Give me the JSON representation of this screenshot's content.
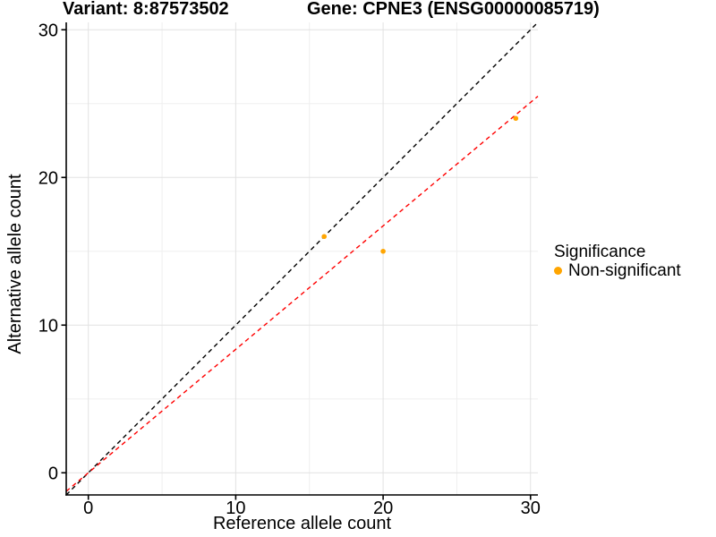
{
  "titles": {
    "variant": "Variant: 8:87573502",
    "gene": "Gene: CPNE3 (ENSG00000085719)"
  },
  "chart_data": {
    "type": "scatter",
    "xlabel": "Reference allele count",
    "ylabel": "Alternative allele count",
    "xlim": [
      -1.5,
      30.5
    ],
    "ylim": [
      -1.5,
      30.5
    ],
    "xticks": [
      0,
      10,
      20,
      30
    ],
    "yticks": [
      0,
      10,
      20,
      30
    ],
    "minor_xticks": [
      5,
      15,
      25
    ],
    "minor_yticks": [
      5,
      15,
      25
    ],
    "grid": "major+minor",
    "points": [
      {
        "x": 16,
        "y": 16,
        "series": "Non-significant"
      },
      {
        "x": 20,
        "y": 15,
        "series": "Non-significant"
      },
      {
        "x": 29,
        "y": 24,
        "series": "Non-significant"
      }
    ],
    "point_color": "#FFA500",
    "point_radius": 2.8,
    "lines": [
      {
        "name": "identity-line",
        "slope": 1,
        "intercept": 0,
        "color": "#000000",
        "dash": "dashed"
      },
      {
        "name": "regression-line",
        "slope": 0.836,
        "intercept": 0,
        "color": "#FF0000",
        "dash": "dashed"
      }
    ],
    "legend": {
      "title": "Significance",
      "position": "right",
      "items": [
        {
          "label": "Non-significant",
          "color": "#FFA500"
        }
      ]
    },
    "colors": {
      "grid_major": "#e2e2e2",
      "grid_minor": "#efefef",
      "axis": "#000000",
      "text": "#000000"
    }
  }
}
